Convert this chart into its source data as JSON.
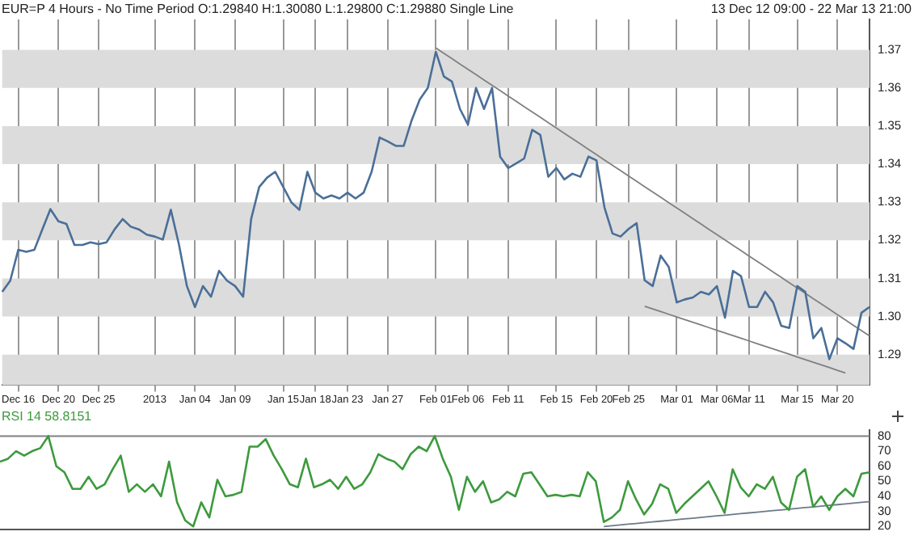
{
  "chart_data": [
    {
      "type": "line",
      "title": "EUR=P 4 Hours -  No Time Period O:1.29840 H:1.30080 L:1.29800 C:1.29880 Single Line",
      "subtitle": "13 Dec 12 09:00  -  22 Mar 13 21:00",
      "categories": [
        null,
        null,
        "Dec 16",
        null,
        null,
        null,
        null,
        "Dec 20",
        null,
        null,
        null,
        null,
        "Dec 25",
        null,
        null,
        null,
        null,
        null,
        null,
        "2013",
        null,
        null,
        null,
        null,
        "Jan 04",
        null,
        null,
        null,
        null,
        "Jan 09",
        null,
        null,
        null,
        null,
        null,
        "Jan 15",
        null,
        null,
        null,
        "Jan 18",
        null,
        null,
        null,
        "Jan 23",
        null,
        null,
        null,
        null,
        "Jan 27",
        null,
        null,
        null,
        null,
        null,
        "Feb 01",
        null,
        null,
        null,
        "Feb 06",
        null,
        null,
        null,
        null,
        "Feb 11",
        null,
        null,
        null,
        null,
        null,
        "Feb 15",
        null,
        null,
        null,
        null,
        "Feb 20",
        null,
        null,
        null,
        "Feb 25",
        null,
        null,
        null,
        null,
        null,
        "Mar 01",
        null,
        null,
        null,
        null,
        "Mar 06",
        null,
        null,
        null,
        "Mar 11",
        null,
        null,
        null,
        null,
        null,
        "Mar 15",
        null,
        null,
        null,
        null,
        "Mar 20",
        null,
        null,
        null,
        null
      ],
      "ylim": [
        1.282,
        1.378
      ],
      "yticks": [
        1.29,
        {
          "value": 1.3,
          "label": "1.30"
        },
        1.31,
        1.32,
        1.33,
        1.34,
        1.35,
        1.36,
        1.37
      ],
      "grid": "x",
      "marker": "none",
      "bands": [
        {
          "axis": "y",
          "from": 1.282,
          "to": 1.29,
          "color": "#dcdcdc"
        },
        {
          "axis": "y",
          "from": 1.3,
          "to": 1.31,
          "color": "#dcdcdc"
        },
        {
          "axis": "y",
          "from": 1.32,
          "to": 1.33,
          "color": "#dcdcdc"
        },
        {
          "axis": "y",
          "from": 1.34,
          "to": 1.35,
          "color": "#dcdcdc"
        },
        {
          "axis": "y",
          "from": 1.36,
          "to": 1.37,
          "color": "#dcdcdc"
        }
      ],
      "series": [
        {
          "color": "#4a6f98",
          "values": [
            1.3065,
            1.3094,
            1.3175,
            1.317,
            1.3175,
            1.3229,
            1.3282,
            1.325,
            1.3243,
            1.3188,
            1.3188,
            1.3195,
            1.319,
            1.3195,
            1.3229,
            1.3256,
            1.3236,
            1.3229,
            1.3215,
            1.321,
            1.3202,
            1.328,
            1.319,
            1.308,
            1.3025,
            1.308,
            1.3052,
            1.312,
            1.3094,
            1.308,
            1.3052,
            1.3256,
            1.334,
            1.3365,
            1.338,
            1.334,
            1.33,
            1.328,
            1.338,
            1.3325,
            1.331,
            1.3318,
            1.331,
            1.3325,
            1.331,
            1.3325,
            1.338,
            1.347,
            1.346,
            1.3448,
            1.3448,
            1.3516,
            1.357,
            1.36,
            1.3695,
            1.363,
            1.3617,
            1.3545,
            1.3504,
            1.36,
            1.3545,
            1.36,
            1.342,
            1.339,
            1.3402,
            1.3415,
            1.349,
            1.3477,
            1.3367,
            1.339,
            1.336,
            1.3375,
            1.3367,
            1.342,
            1.341,
            1.3286,
            1.3218,
            1.321,
            1.323,
            1.3245,
            1.3095,
            1.308,
            1.316,
            1.313,
            1.3037,
            1.3045,
            1.305,
            1.3065,
            1.3058,
            1.308,
            1.2997,
            1.312,
            1.3106,
            1.3025,
            1.3025,
            1.3065,
            1.3037,
            1.2976,
            1.297,
            1.308,
            1.3065,
            1.2943,
            1.297,
            1.2888,
            1.2943,
            1.293,
            1.2915,
            1.301,
            1.3025
          ]
        },
        {
          "type": "line",
          "color": "#808080",
          "values": [
            null,
            null,
            null,
            null,
            null,
            null,
            null,
            null,
            null,
            null,
            null,
            null,
            null,
            null,
            null,
            null,
            null,
            null,
            null,
            null,
            null,
            null,
            null,
            null,
            null,
            null,
            null,
            null,
            null,
            null,
            null,
            null,
            null,
            null,
            null,
            null,
            null,
            null,
            null,
            null,
            null,
            null,
            null,
            null,
            null,
            null,
            null,
            null,
            null,
            null,
            null,
            null,
            null,
            null,
            1.3705,
            1.3691,
            1.3677,
            1.3663,
            1.3649,
            1.3635,
            1.3621,
            1.3607,
            1.3593,
            1.3579,
            1.3565,
            1.3551,
            1.3537,
            1.3523,
            1.3509,
            1.3495,
            1.3481,
            1.3467,
            1.3453,
            1.3439,
            1.3425,
            1.3411,
            1.3397,
            1.3383,
            1.3369,
            1.3355,
            1.3341,
            1.3327,
            1.3313,
            1.3299,
            1.3285,
            1.3271,
            1.3257,
            1.3243,
            1.3229,
            1.3215,
            1.3201,
            1.3187,
            1.3173,
            1.3159,
            1.3145,
            1.3131,
            1.3117,
            1.3103,
            1.3089,
            1.3075,
            1.3061,
            1.3047,
            1.3033,
            1.3019,
            1.3005,
            1.2991,
            1.2977,
            1.2963,
            1.2949
          ]
        },
        {
          "type": "line",
          "color": "#808080",
          "values": [
            null,
            null,
            null,
            null,
            null,
            null,
            null,
            null,
            null,
            null,
            null,
            null,
            null,
            null,
            null,
            null,
            null,
            null,
            null,
            null,
            null,
            null,
            null,
            null,
            null,
            null,
            null,
            null,
            null,
            null,
            null,
            null,
            null,
            null,
            null,
            null,
            null,
            null,
            null,
            null,
            null,
            null,
            null,
            null,
            null,
            null,
            null,
            null,
            null,
            null,
            null,
            null,
            null,
            null,
            null,
            null,
            null,
            null,
            null,
            null,
            null,
            null,
            null,
            null,
            null,
            null,
            null,
            null,
            null,
            null,
            null,
            null,
            null,
            null,
            null,
            null,
            null,
            null,
            null,
            null,
            1.3027,
            1.302,
            1.3013,
            1.3006,
            1.2999,
            1.2992,
            1.2985,
            1.2978,
            1.2971,
            1.2964,
            1.2957,
            1.295,
            1.2943,
            1.2936,
            1.2929,
            1.2922,
            1.2915,
            1.2908,
            1.2901,
            1.2894,
            1.2887,
            1.288,
            1.2873,
            1.2866,
            1.2859,
            1.2852,
            null,
            null,
            null
          ]
        }
      ]
    },
    {
      "type": "line",
      "title": "RSI 14  58.8151",
      "categories": [
        null,
        null,
        null,
        null,
        null,
        null,
        null,
        null,
        null,
        null,
        null,
        null,
        null,
        null,
        null,
        null,
        null,
        null,
        null,
        null,
        null,
        null,
        null,
        null,
        null,
        null,
        null,
        null,
        null,
        null,
        null,
        null,
        null,
        null,
        null,
        null,
        null,
        null,
        null,
        null,
        null,
        null,
        null,
        null,
        null,
        null,
        null,
        null,
        null,
        null,
        null,
        null,
        null,
        null,
        null,
        null,
        null,
        null,
        null,
        null,
        null,
        null,
        null,
        null,
        null,
        null,
        null,
        null,
        null,
        null,
        null,
        null,
        null,
        null,
        null,
        null,
        null,
        null,
        null,
        null,
        null,
        null,
        null,
        null,
        null,
        null,
        null,
        null,
        null,
        null,
        null,
        null,
        null,
        null,
        null,
        null,
        null,
        null,
        null,
        null,
        null,
        null,
        null,
        null,
        null,
        null,
        null,
        null,
        null
      ],
      "ylim": [
        18,
        84
      ],
      "yticks": [
        20,
        30,
        40,
        50,
        60,
        70,
        80
      ],
      "tick_labels": "y",
      "marker": "none",
      "grid": false,
      "ref_lines": [
        {
          "axis": "y",
          "value": 80,
          "color": "#808080"
        }
      ],
      "series": [
        {
          "color": "#3d9a3d",
          "values": [
            63,
            65,
            70,
            67,
            70,
            72,
            80,
            60,
            56,
            45,
            45,
            53,
            45,
            48,
            58,
            67,
            43,
            48,
            43,
            48,
            40,
            63,
            36,
            24,
            20,
            36,
            26,
            51,
            40,
            41,
            43,
            73,
            73,
            78,
            67,
            58,
            48,
            46,
            65,
            46,
            48,
            51,
            45,
            53,
            45,
            48,
            56,
            68,
            65,
            63,
            58,
            68,
            73,
            70,
            80,
            65,
            53,
            31,
            53,
            43,
            50,
            36,
            38,
            43,
            40,
            55,
            56,
            48,
            40,
            41,
            40,
            41,
            40,
            56,
            50,
            23,
            26,
            31,
            50,
            38,
            28,
            35,
            48,
            45,
            29,
            35,
            40,
            45,
            50,
            40,
            29,
            58,
            46,
            40,
            48,
            45,
            53,
            36,
            31,
            53,
            58,
            33,
            40,
            31,
            40,
            45,
            40,
            55,
            56
          ]
        },
        {
          "type": "line",
          "color": "#6a7a8a",
          "values": [
            null,
            null,
            null,
            null,
            null,
            null,
            null,
            null,
            null,
            null,
            null,
            null,
            null,
            null,
            null,
            null,
            null,
            null,
            null,
            null,
            null,
            null,
            null,
            null,
            null,
            null,
            null,
            null,
            null,
            null,
            null,
            null,
            null,
            null,
            null,
            null,
            null,
            null,
            null,
            null,
            null,
            null,
            null,
            null,
            null,
            null,
            null,
            null,
            null,
            null,
            null,
            null,
            null,
            null,
            null,
            null,
            null,
            null,
            null,
            null,
            null,
            null,
            null,
            null,
            null,
            null,
            null,
            null,
            null,
            null,
            null,
            null,
            null,
            null,
            null,
            20,
            20.5,
            21,
            21.5,
            22,
            22.5,
            23,
            23.5,
            24,
            24.5,
            25,
            25.5,
            26,
            26.5,
            27,
            27.5,
            28,
            28.5,
            29,
            29.5,
            30,
            30.5,
            31,
            31.5,
            32,
            32.5,
            33,
            33.5,
            34,
            34.5,
            35,
            35.5,
            36,
            36.5
          ]
        }
      ]
    }
  ]
}
